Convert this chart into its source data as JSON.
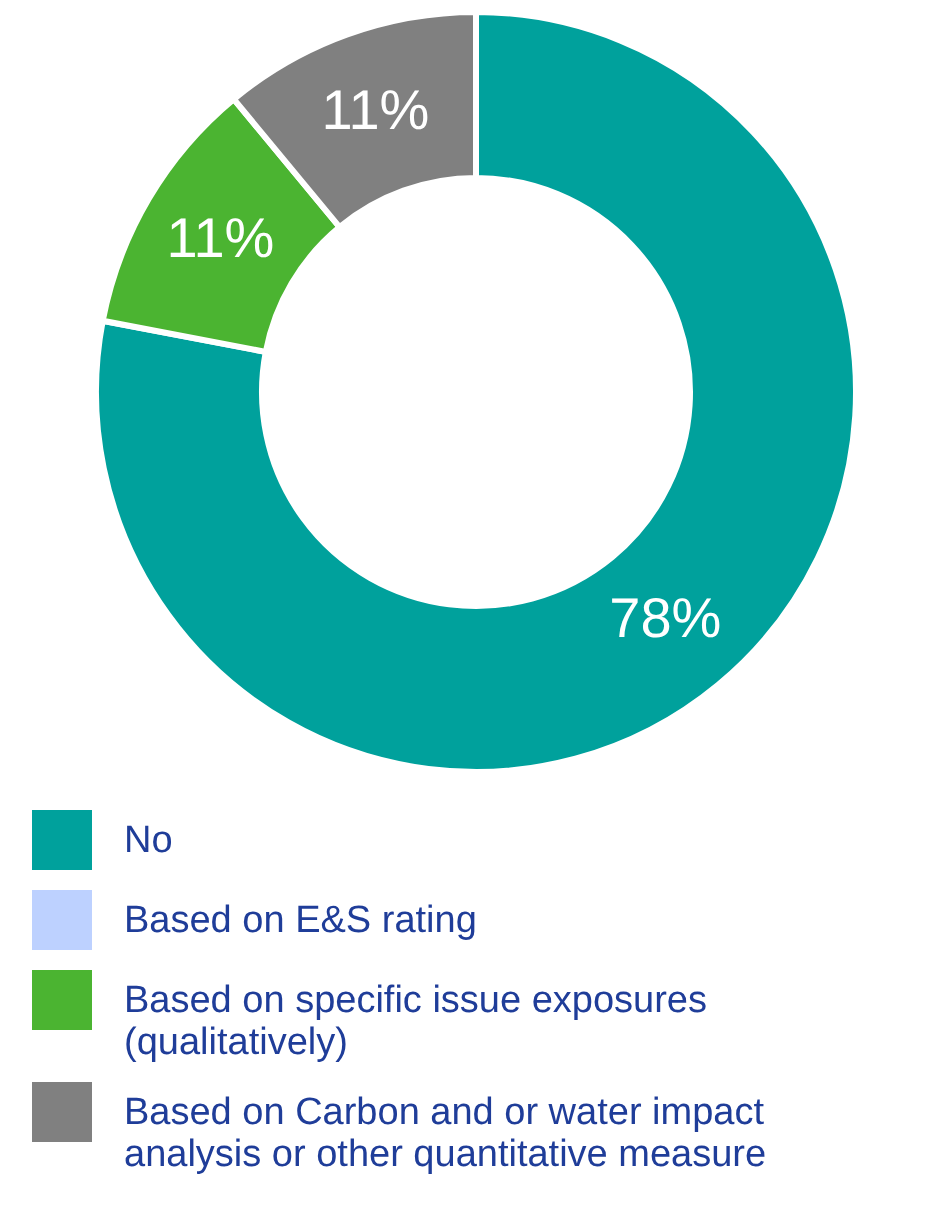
{
  "chart_data": {
    "type": "donut",
    "categories": [
      "No",
      "Based on E&S rating",
      "Based on specific issue exposures (qualitatively)",
      "Based on Carbon and or water impact analysis or other quantitative measure"
    ],
    "values": [
      78,
      0,
      11,
      11
    ],
    "colors": [
      "#00a19c",
      "#bdd1ff",
      "#4bb431",
      "#808080"
    ],
    "value_labels": [
      "78%",
      null,
      "11%",
      "11%"
    ],
    "legend": "bottom"
  }
}
